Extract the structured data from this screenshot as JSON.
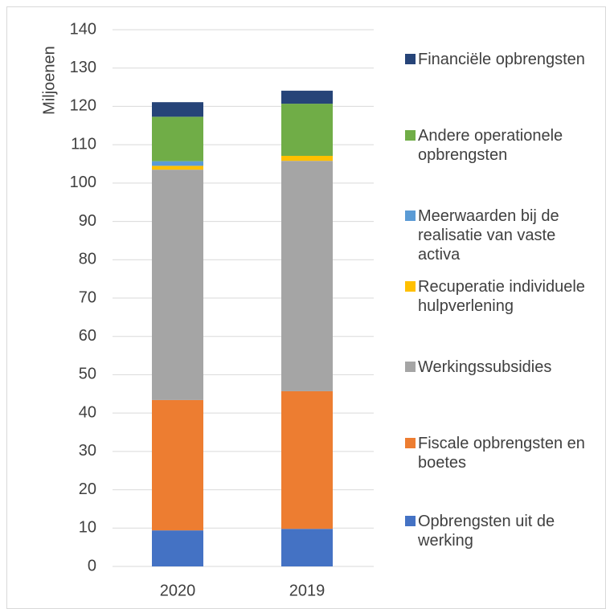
{
  "chart_data": {
    "type": "stacked_bar",
    "y_label": "Miljoenen",
    "categories": [
      "2020",
      "2019"
    ],
    "series": [
      {
        "name": "Opbrengsten uit de werking",
        "color": "#4472c4",
        "values": [
          9.4,
          9.8
        ]
      },
      {
        "name": "Fiscale opbrengsten en boetes",
        "color": "#ed7d31",
        "values": [
          34.0,
          35.9
        ]
      },
      {
        "name": "Werkingssubsidies",
        "color": "#a5a5a5",
        "values": [
          60.1,
          60.1
        ]
      },
      {
        "name": "Recuperatie individuele hulpverlening",
        "color": "#ffc000",
        "values": [
          1.0,
          1.3
        ]
      },
      {
        "name": "Meerwaarden bij de realisatie van vaste activa",
        "color": "#5b9bd5",
        "values": [
          1.2,
          0
        ]
      },
      {
        "name": "Andere operationele opbrengsten",
        "color": "#70ad47",
        "values": [
          11.6,
          13.6
        ]
      },
      {
        "name": "Financiële opbrengsten",
        "color": "#264478",
        "values": [
          3.8,
          3.4
        ]
      }
    ],
    "ylim": [
      0,
      140
    ],
    "yticks": [
      0,
      10,
      20,
      30,
      40,
      50,
      60,
      70,
      80,
      90,
      100,
      110,
      120,
      130,
      140
    ],
    "grid": true,
    "legend": "right"
  }
}
